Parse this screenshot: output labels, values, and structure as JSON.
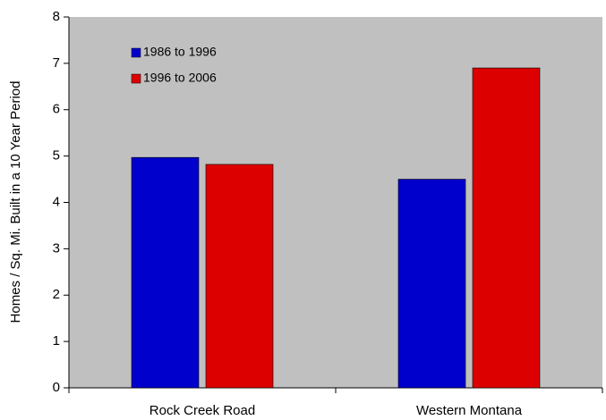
{
  "chart_data": {
    "type": "bar",
    "categories": [
      "Rock Creek Road",
      "Western Montana"
    ],
    "series": [
      {
        "name": "1986 to 1996",
        "color": "#0000cc",
        "values": [
          4.97,
          4.5
        ]
      },
      {
        "name": "1996 to 2006",
        "color": "#dd0000",
        "values": [
          4.82,
          6.9
        ]
      }
    ],
    "y_label": "Homes / Sq. Mi. Built in a 10 Year Period",
    "ylim": [
      0,
      8
    ],
    "yticks": [
      0,
      1,
      2,
      3,
      4,
      5,
      6,
      7,
      8
    ],
    "plot_background": "#c0c0c0",
    "legend": "upper-left"
  }
}
